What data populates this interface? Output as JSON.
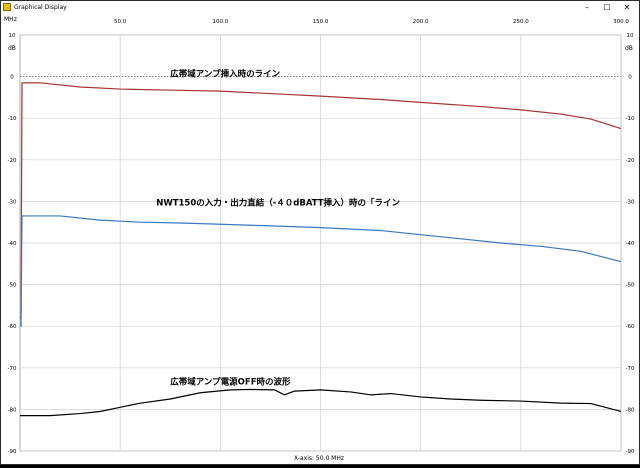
{
  "window": {
    "title": "Graphical Display",
    "icon": "graph-app-icon",
    "controls": [
      "minimize",
      "maximize",
      "close"
    ]
  },
  "chart_data": {
    "type": "line",
    "x_unit_label": "MHz",
    "y_unit_label": "dB",
    "x_axis_caption": "X-axis: 50.0 MHz",
    "xlim": [
      0,
      300
    ],
    "ylim": [
      -90,
      10
    ],
    "x_ticks": [
      50,
      100,
      150,
      200,
      250,
      300
    ],
    "x_tick_labels": [
      "50.0",
      "100.0",
      "150.0",
      "200.0",
      "250.0",
      "300.0"
    ],
    "y_ticks": [
      10,
      0,
      -10,
      -20,
      -30,
      -40,
      -50,
      -60,
      -70,
      -80,
      -90
    ],
    "y_tick_labels": [
      "10",
      "0",
      "-10",
      "-20",
      "-30",
      "-40",
      "-50",
      "-60",
      "-70",
      "-80",
      "-90"
    ],
    "grid": true,
    "zero_reference_dotted": true,
    "series": [
      {
        "color": "#a83232",
        "points": [
          [
            0,
            -58
          ],
          [
            0.5,
            -58
          ],
          [
            1,
            -1.5
          ],
          [
            10,
            -1.5
          ],
          [
            30,
            -2.5
          ],
          [
            50,
            -3
          ],
          [
            80,
            -3.3
          ],
          [
            100,
            -3.5
          ],
          [
            130,
            -4.2
          ],
          [
            150,
            -4.7
          ],
          [
            180,
            -5.5
          ],
          [
            200,
            -6.2
          ],
          [
            230,
            -7.2
          ],
          [
            250,
            -8
          ],
          [
            270,
            -9
          ],
          [
            285,
            -10.2
          ],
          [
            300,
            -12.5
          ]
        ]
      },
      {
        "color": "#3a78c4",
        "points": [
          [
            0,
            -60
          ],
          [
            0.5,
            -60
          ],
          [
            1,
            -33.5
          ],
          [
            20,
            -33.5
          ],
          [
            40,
            -34.5
          ],
          [
            60,
            -35
          ],
          [
            80,
            -35.2
          ],
          [
            100,
            -35.5
          ],
          [
            120,
            -35.8
          ],
          [
            150,
            -36.3
          ],
          [
            180,
            -37
          ],
          [
            200,
            -38
          ],
          [
            220,
            -39
          ],
          [
            240,
            -40
          ],
          [
            260,
            -40.8
          ],
          [
            280,
            -42
          ],
          [
            300,
            -44.5
          ]
        ]
      },
      {
        "color": "#000000",
        "points": [
          [
            0,
            -81.5
          ],
          [
            15,
            -81.5
          ],
          [
            30,
            -81
          ],
          [
            40,
            -80.5
          ],
          [
            50,
            -79.5
          ],
          [
            60,
            -78.5
          ],
          [
            75,
            -77.5
          ],
          [
            90,
            -76
          ],
          [
            105,
            -75.3
          ],
          [
            115,
            -75.2
          ],
          [
            127,
            -75.3
          ],
          [
            132,
            -76.5
          ],
          [
            137,
            -75.6
          ],
          [
            150,
            -75.3
          ],
          [
            165,
            -75.8
          ],
          [
            175,
            -76.5
          ],
          [
            185,
            -76.2
          ],
          [
            200,
            -77
          ],
          [
            215,
            -77.5
          ],
          [
            230,
            -77.8
          ],
          [
            250,
            -78
          ],
          [
            270,
            -78.5
          ],
          [
            285,
            -78.6
          ],
          [
            300,
            -80.5
          ]
        ]
      }
    ],
    "annotations": [
      {
        "text": "広帯域アンプ挿入時のライン",
        "x": 75,
        "y": 0,
        "anchor": "start",
        "series_index": 0
      },
      {
        "text": "NWT150の入力・出力直結（-４０dBATT挿入）時の「ライン",
        "x": 68,
        "y": -31,
        "anchor": "start",
        "series_index": 1
      },
      {
        "text": "広帯域アンプ電源OFF時の波形",
        "x": 75,
        "y": -74,
        "anchor": "start",
        "series_index": 2
      }
    ]
  }
}
